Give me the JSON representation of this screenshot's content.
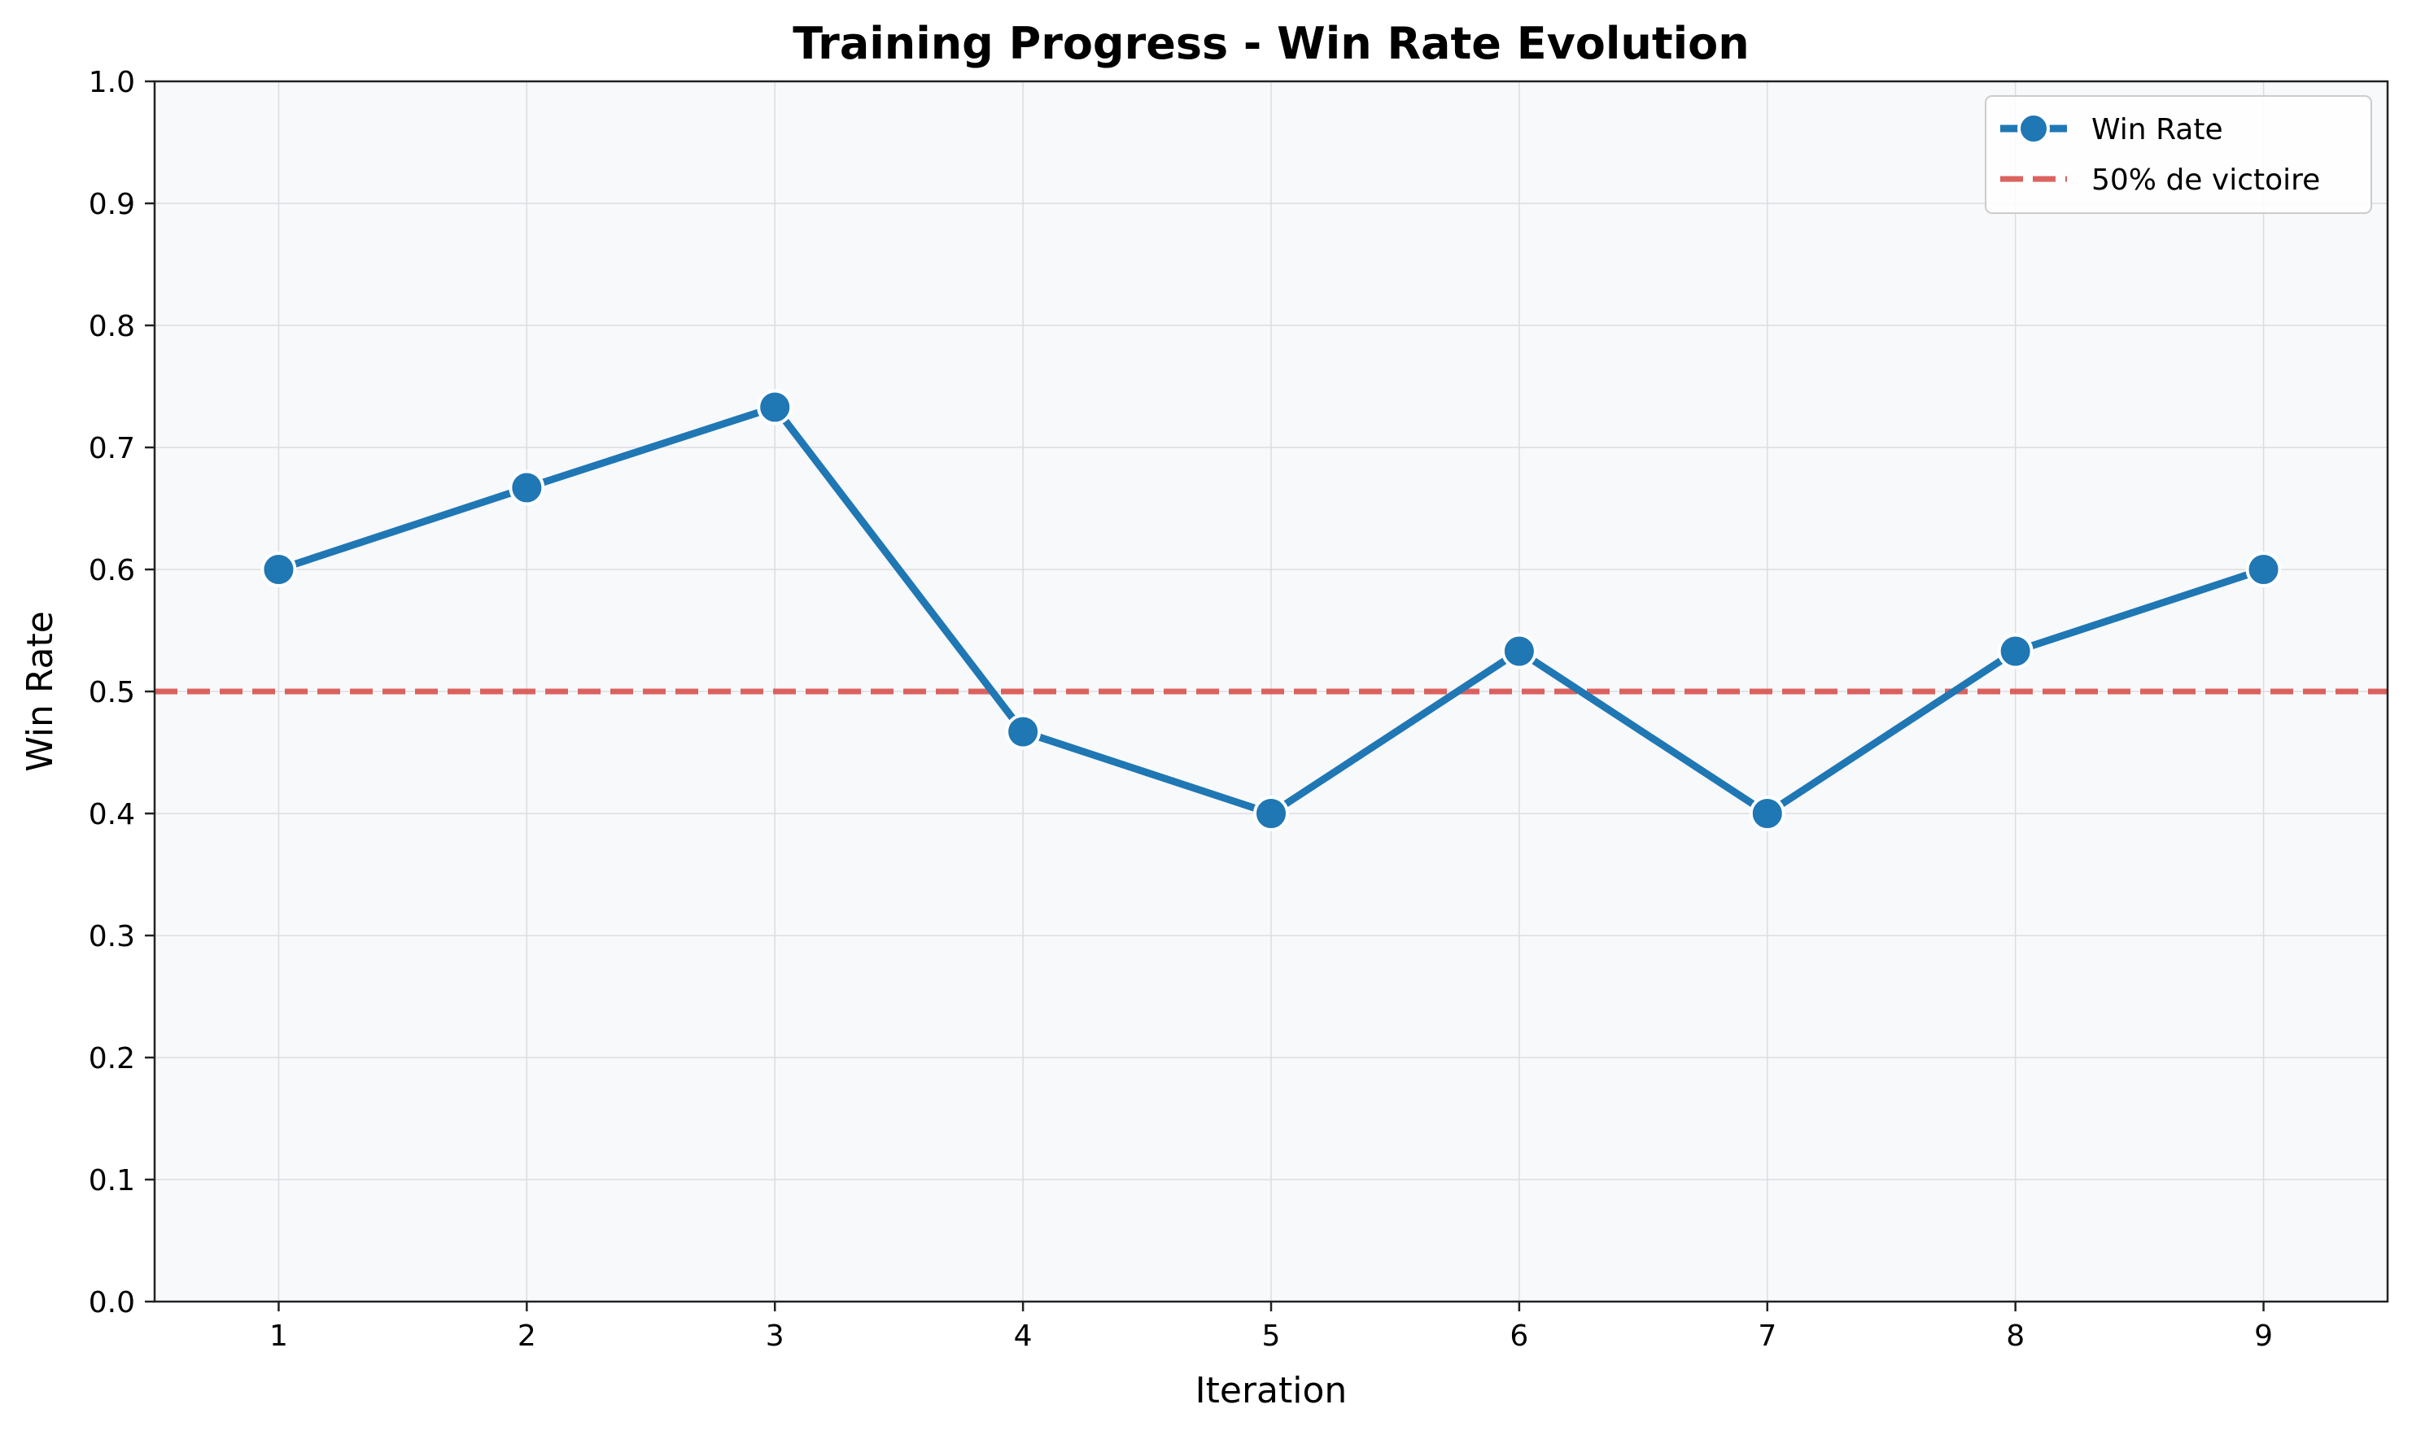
{
  "chart_data": {
    "type": "line",
    "title": "Training Progress - Win Rate Evolution",
    "xlabel": "Iteration",
    "ylabel": "Win Rate",
    "x": [
      1,
      2,
      3,
      4,
      5,
      6,
      7,
      8,
      9
    ],
    "xticks": [
      "1",
      "2",
      "3",
      "4",
      "5",
      "6",
      "7",
      "8",
      "9"
    ],
    "xlim": [
      0.5,
      9.5
    ],
    "ylim": [
      0.0,
      1.0
    ],
    "yticks": [
      "0.0",
      "0.1",
      "0.2",
      "0.3",
      "0.4",
      "0.5",
      "0.6",
      "0.7",
      "0.8",
      "0.9",
      "1.0"
    ],
    "series": [
      {
        "name": "Win Rate",
        "values": [
          0.6,
          0.667,
          0.733,
          0.467,
          0.4,
          0.533,
          0.4,
          0.533,
          0.6
        ],
        "color": "#1f77b4",
        "marker": "circle"
      }
    ],
    "reference_lines": [
      {
        "name": "50% de victoire",
        "y": 0.5,
        "color": "#d9534f",
        "style": "dashed"
      }
    ],
    "grid": true,
    "legend": "top-right",
    "background": "#f8f9fb"
  }
}
